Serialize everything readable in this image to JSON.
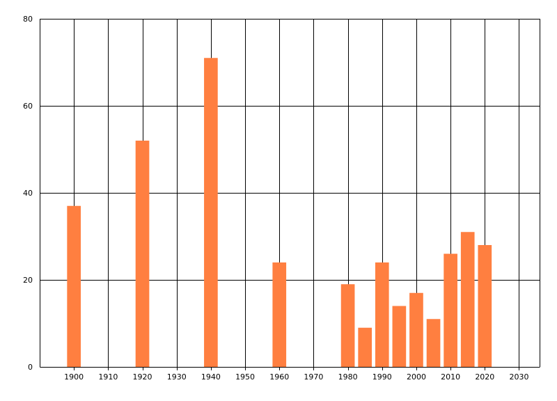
{
  "chart_data": {
    "type": "bar",
    "title": "",
    "xlabel": "",
    "ylabel": "",
    "x": [
      1900,
      1920,
      1940,
      1960,
      1980,
      1985,
      1990,
      1995,
      2000,
      2005,
      2010,
      2015,
      2020
    ],
    "values": [
      37,
      52,
      71,
      24,
      19,
      9,
      24,
      14,
      17,
      11,
      26,
      31,
      28
    ],
    "xlim": [
      1890,
      2036
    ],
    "ylim": [
      0,
      80
    ],
    "x_ticks": [
      1900,
      1910,
      1920,
      1930,
      1940,
      1950,
      1960,
      1970,
      1980,
      1990,
      2000,
      2010,
      2020,
      2030
    ],
    "y_ticks": [
      0,
      20,
      40,
      60,
      80
    ],
    "grid": true,
    "legend": false,
    "bar_color": "#ff7f40",
    "grid_color": "#000000"
  }
}
